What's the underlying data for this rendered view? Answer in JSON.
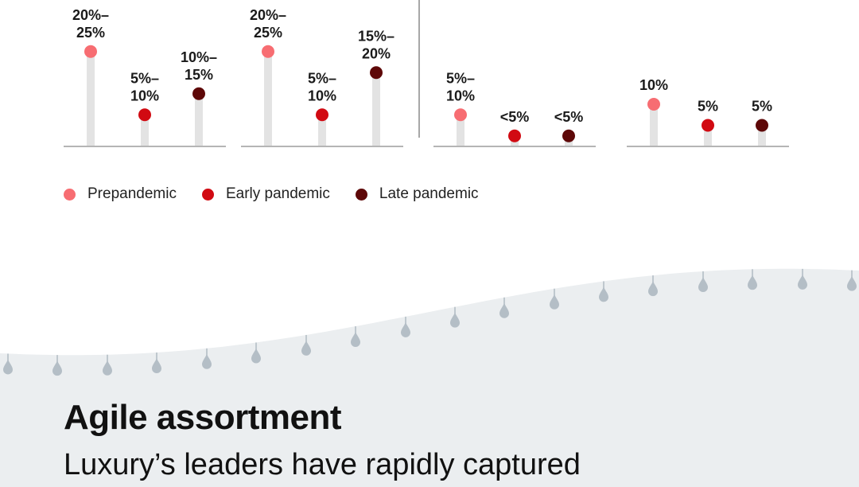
{
  "colors": {
    "prepandemic": "#f76d72",
    "early": "#d10a12",
    "late": "#5e0808",
    "stem": "#e3e3e3",
    "baseline": "#b5b5b5",
    "divider": "#8a8a8a",
    "wave": "#ebeef0",
    "drop": "#b4bec6"
  },
  "chart_data": [
    {
      "type": "lollipop",
      "series": [
        "Prepandemic",
        "Early pandemic",
        "Late pandemic"
      ],
      "values": [
        22.5,
        7.5,
        12.5
      ],
      "labels": [
        [
          "20%–",
          "25%"
        ],
        [
          "5%–",
          "10%"
        ],
        [
          "10%–",
          "15%"
        ]
      ]
    },
    {
      "type": "lollipop",
      "series": [
        "Prepandemic",
        "Early pandemic",
        "Late pandemic"
      ],
      "values": [
        22.5,
        7.5,
        17.5
      ],
      "labels": [
        [
          "20%–",
          "25%"
        ],
        [
          "5%–",
          "10%"
        ],
        [
          "15%–",
          "20%"
        ]
      ]
    },
    {
      "type": "lollipop",
      "series": [
        "Prepandemic",
        "Early pandemic",
        "Late pandemic"
      ],
      "values": [
        7.5,
        2.5,
        2.5
      ],
      "labels": [
        [
          "5%–",
          "10%"
        ],
        [
          "<5%"
        ],
        [
          "<5%"
        ]
      ]
    },
    {
      "type": "lollipop",
      "series": [
        "Prepandemic",
        "Early pandemic",
        "Late pandemic"
      ],
      "values": [
        10,
        5,
        5
      ],
      "labels": [
        [
          "10%"
        ],
        [
          "5%"
        ],
        [
          "5%"
        ]
      ]
    }
  ],
  "legend": [
    {
      "label": "Prepandemic",
      "color": "#f76d72"
    },
    {
      "label": "Early pandemic",
      "color": "#d10a12"
    },
    {
      "label": "Late pandemic",
      "color": "#5e0808"
    }
  ],
  "section": {
    "heading": "Agile assortment",
    "subheading": "Luxury’s leaders have rapidly captured"
  }
}
